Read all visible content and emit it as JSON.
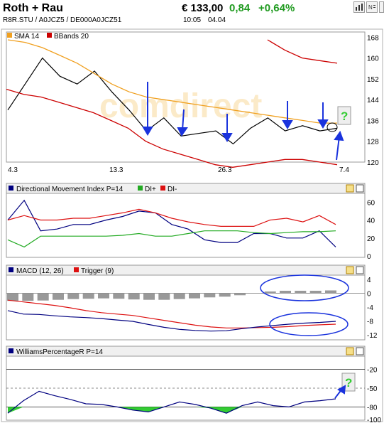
{
  "header": {
    "title": "Roth + Rau",
    "identifiers": "R8R.STU  /  A0JCZ5  /  DE000A0JCZ51",
    "price": "€ 133,00",
    "change": "0,84",
    "change_pct": "+0,64%",
    "time": "10:05",
    "date": "04.04",
    "toolbar_icons": [
      "bar-chart-icon",
      "news-icon",
      "close-icon"
    ]
  },
  "colors": {
    "price": "#000000",
    "sma": "#f0a020",
    "bbands": "#cc0000",
    "dmi": "#000080",
    "di_plus": "#22aa22",
    "di_minus": "#dd1111",
    "macd": "#000080",
    "trigger": "#dd1111",
    "histogram": "#999999",
    "williams_fill": "#33cc33",
    "annotation": "#1a33dd",
    "question": "#33cc33",
    "up": "#1f9a1f"
  },
  "chart_data": [
    {
      "type": "line",
      "panel": "price",
      "legend": [
        "SMA 14",
        "BBands 20"
      ],
      "x_ticks": [
        "4.3",
        "13.3",
        "26.3",
        "7.4"
      ],
      "y_ticks": [
        168,
        160,
        152,
        144,
        136,
        128,
        120
      ],
      "ylim": [
        120,
        170
      ],
      "watermark": "comdirect",
      "series": [
        {
          "name": "price",
          "values": [
            140,
            150,
            160,
            153,
            150,
            155,
            147,
            140,
            132,
            137,
            130,
            131,
            132,
            127,
            133,
            137,
            132,
            134,
            132,
            133
          ]
        },
        {
          "name": "SMA 14",
          "values": [
            167,
            166,
            164,
            161,
            158,
            154,
            150,
            147,
            145,
            144,
            143,
            142,
            141,
            140,
            139,
            138,
            137,
            136,
            135,
            135
          ]
        },
        {
          "name": "BBands 20",
          "values": [
            148,
            146,
            145,
            143,
            141,
            139,
            136,
            133,
            128,
            125,
            123,
            121,
            119,
            118,
            119,
            120,
            121,
            121,
            120,
            119
          ]
        },
        {
          "name": "BBands upper",
          "values": [
            null,
            null,
            null,
            null,
            null,
            null,
            null,
            null,
            null,
            null,
            null,
            null,
            null,
            null,
            null,
            167,
            163,
            160,
            159,
            158
          ]
        }
      ],
      "annotations": {
        "arrows": 6,
        "question_mark": "?"
      }
    },
    {
      "type": "line",
      "panel": "dmi",
      "legend": [
        "Directional Movement Index P=14",
        "DI+",
        "DI-"
      ],
      "y_ticks": [
        60,
        40,
        20,
        0
      ],
      "ylim": [
        0,
        65
      ],
      "series": [
        {
          "name": "Directional Movement Index P=14",
          "values": [
            40,
            62,
            28,
            30,
            35,
            35,
            40,
            44,
            50,
            48,
            35,
            30,
            18,
            15,
            15,
            25,
            25,
            20,
            20,
            28,
            10
          ]
        },
        {
          "name": "DI+",
          "values": [
            18,
            10,
            22,
            22,
            22,
            22,
            22,
            23,
            25,
            22,
            22,
            25,
            28,
            28,
            28,
            26,
            25,
            26,
            27,
            27,
            28
          ]
        },
        {
          "name": "DI-",
          "values": [
            40,
            45,
            40,
            40,
            42,
            42,
            45,
            48,
            52,
            48,
            42,
            38,
            35,
            33,
            33,
            33,
            40,
            42,
            38,
            45,
            35
          ]
        }
      ]
    },
    {
      "type": "bar",
      "panel": "macd",
      "legend": [
        "MACD (12, 26)",
        "Trigger (9)"
      ],
      "y_ticks": [
        4,
        0,
        -4,
        -8,
        -12
      ],
      "ylim": [
        -13,
        5
      ],
      "histogram": [
        -2.2,
        -2.2,
        -2.1,
        -1.9,
        -1.7,
        -1.6,
        -1.5,
        -1.6,
        -1.8,
        -1.9,
        -1.9,
        -1.7,
        -1.5,
        -1.2,
        -1,
        -0.6,
        0.1,
        0.5,
        0.7,
        0.7,
        0.7,
        0.8
      ],
      "series": [
        {
          "name": "MACD (12, 26)",
          "values": [
            -5,
            -6,
            -6.1,
            -6.5,
            -6.8,
            -7,
            -7.3,
            -7.7,
            -8.1,
            -9,
            -9.8,
            -10.4,
            -10.7,
            -10.9,
            -10.8,
            -10.2,
            -9.7,
            -9.3,
            -8.9,
            -8.6,
            -8.4,
            -8.1
          ]
        },
        {
          "name": "Trigger (9)",
          "values": [
            -2,
            -2.5,
            -3,
            -3.5,
            -4.2,
            -5,
            -5.6,
            -6,
            -6.4,
            -7.1,
            -7.8,
            -8.5,
            -9.2,
            -9.7,
            -10,
            -10,
            -9.9,
            -9.8,
            -9.6,
            -9.3,
            -9.1,
            -8.9
          ]
        }
      ]
    },
    {
      "type": "area",
      "panel": "williams",
      "legend": [
        "WilliamsPercentageR P=14"
      ],
      "y_ticks": [
        -20,
        -50,
        -80,
        -100
      ],
      "ylim": [
        -100,
        0
      ],
      "series": [
        {
          "name": "WilliamsPercentageR P=14",
          "values": [
            -90,
            -70,
            -55,
            -62,
            -68,
            -75,
            -76,
            -80,
            -85,
            -88,
            -80,
            -72,
            -76,
            -82,
            -90,
            -78,
            -72,
            -78,
            -80,
            -72,
            -70,
            -67
          ]
        }
      ],
      "annotations": {
        "question_mark": "?"
      }
    }
  ]
}
